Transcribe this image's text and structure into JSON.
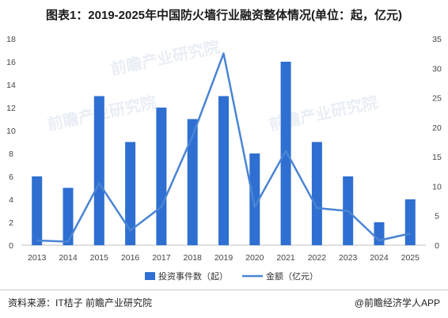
{
  "title": "图表1：2019-2025年中国防火墙行业融资整体情况(单位：起，亿元)",
  "footer": {
    "source": "资料来源：IT桔子 前瞻产业研究院",
    "brand": "@前瞻经济学人APP"
  },
  "watermark": "前瞻产业研究院",
  "colors": {
    "bar": "#2e6fd1",
    "line": "#4a84d4",
    "axis": "#bfbfbf"
  },
  "chart_data": {
    "type": "bar",
    "categories": [
      "2013",
      "2014",
      "2015",
      "2016",
      "2017",
      "2018",
      "2019",
      "2020",
      "2021",
      "2022",
      "2023",
      "2024",
      "2025"
    ],
    "series": [
      {
        "name": "投资事件数（起）",
        "type": "bar",
        "axis": "left",
        "values": [
          6,
          5,
          13,
          9,
          12,
          11,
          13,
          8,
          16,
          9,
          6,
          2,
          4
        ]
      },
      {
        "name": "金额（亿元）",
        "type": "line",
        "axis": "right",
        "values": [
          0.8,
          0.6,
          10.5,
          2.5,
          6.5,
          18.5,
          32.5,
          6.5,
          16.0,
          6.3,
          5.8,
          0.8,
          2.0
        ]
      }
    ],
    "ylim_left": [
      0,
      18
    ],
    "yticks_left": [
      0,
      2,
      4,
      6,
      8,
      10,
      12,
      14,
      16,
      18
    ],
    "ylim_right": [
      0,
      35
    ],
    "yticks_right": [
      0,
      5,
      10,
      15,
      20,
      25,
      30,
      35
    ],
    "legend_position": "bottom"
  }
}
